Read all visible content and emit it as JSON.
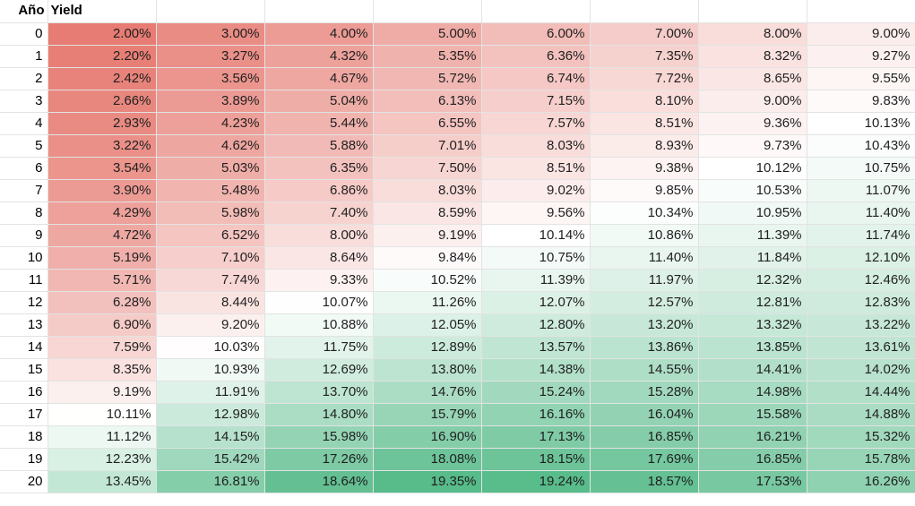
{
  "headers": {
    "year": "Año",
    "yield": "Yield"
  },
  "color_scale": {
    "low": "#e67c73",
    "mid": "#ffffff",
    "high": "#57bb8a",
    "mid_value": 10.14
  },
  "rows": [
    {
      "year": "0",
      "values": [
        "2.00%",
        "3.00%",
        "4.00%",
        "5.00%",
        "6.00%",
        "7.00%",
        "8.00%",
        "9.00%"
      ]
    },
    {
      "year": "1",
      "values": [
        "2.20%",
        "3.27%",
        "4.32%",
        "5.35%",
        "6.36%",
        "7.35%",
        "8.32%",
        "9.27%"
      ]
    },
    {
      "year": "2",
      "values": [
        "2.42%",
        "3.56%",
        "4.67%",
        "5.72%",
        "6.74%",
        "7.72%",
        "8.65%",
        "9.55%"
      ]
    },
    {
      "year": "3",
      "values": [
        "2.66%",
        "3.89%",
        "5.04%",
        "6.13%",
        "7.15%",
        "8.10%",
        "9.00%",
        "9.83%"
      ]
    },
    {
      "year": "4",
      "values": [
        "2.93%",
        "4.23%",
        "5.44%",
        "6.55%",
        "7.57%",
        "8.51%",
        "9.36%",
        "10.13%"
      ]
    },
    {
      "year": "5",
      "values": [
        "3.22%",
        "4.62%",
        "5.88%",
        "7.01%",
        "8.03%",
        "8.93%",
        "9.73%",
        "10.43%"
      ]
    },
    {
      "year": "6",
      "values": [
        "3.54%",
        "5.03%",
        "6.35%",
        "7.50%",
        "8.51%",
        "9.38%",
        "10.12%",
        "10.75%"
      ]
    },
    {
      "year": "7",
      "values": [
        "3.90%",
        "5.48%",
        "6.86%",
        "8.03%",
        "9.02%",
        "9.85%",
        "10.53%",
        "11.07%"
      ]
    },
    {
      "year": "8",
      "values": [
        "4.29%",
        "5.98%",
        "7.40%",
        "8.59%",
        "9.56%",
        "10.34%",
        "10.95%",
        "11.40%"
      ]
    },
    {
      "year": "9",
      "values": [
        "4.72%",
        "6.52%",
        "8.00%",
        "9.19%",
        "10.14%",
        "10.86%",
        "11.39%",
        "11.74%"
      ]
    },
    {
      "year": "10",
      "values": [
        "5.19%",
        "7.10%",
        "8.64%",
        "9.84%",
        "10.75%",
        "11.40%",
        "11.84%",
        "12.10%"
      ]
    },
    {
      "year": "11",
      "values": [
        "5.71%",
        "7.74%",
        "9.33%",
        "10.52%",
        "11.39%",
        "11.97%",
        "12.32%",
        "12.46%"
      ]
    },
    {
      "year": "12",
      "values": [
        "6.28%",
        "8.44%",
        "10.07%",
        "11.26%",
        "12.07%",
        "12.57%",
        "12.81%",
        "12.83%"
      ]
    },
    {
      "year": "13",
      "values": [
        "6.90%",
        "9.20%",
        "10.88%",
        "12.05%",
        "12.80%",
        "13.20%",
        "13.32%",
        "13.22%"
      ]
    },
    {
      "year": "14",
      "values": [
        "7.59%",
        "10.03%",
        "11.75%",
        "12.89%",
        "13.57%",
        "13.86%",
        "13.85%",
        "13.61%"
      ]
    },
    {
      "year": "15",
      "values": [
        "8.35%",
        "10.93%",
        "12.69%",
        "13.80%",
        "14.38%",
        "14.55%",
        "14.41%",
        "14.02%"
      ]
    },
    {
      "year": "16",
      "values": [
        "9.19%",
        "11.91%",
        "13.70%",
        "14.76%",
        "15.24%",
        "15.28%",
        "14.98%",
        "14.44%"
      ]
    },
    {
      "year": "17",
      "values": [
        "10.11%",
        "12.98%",
        "14.80%",
        "15.79%",
        "16.16%",
        "16.04%",
        "15.58%",
        "14.88%"
      ]
    },
    {
      "year": "18",
      "values": [
        "11.12%",
        "14.15%",
        "15.98%",
        "16.90%",
        "17.13%",
        "16.85%",
        "16.21%",
        "15.32%"
      ]
    },
    {
      "year": "19",
      "values": [
        "12.23%",
        "15.42%",
        "17.26%",
        "18.08%",
        "18.15%",
        "17.69%",
        "16.85%",
        "15.78%"
      ]
    },
    {
      "year": "20",
      "values": [
        "13.45%",
        "16.81%",
        "18.64%",
        "19.35%",
        "19.24%",
        "18.57%",
        "17.53%",
        "16.26%"
      ]
    }
  ]
}
